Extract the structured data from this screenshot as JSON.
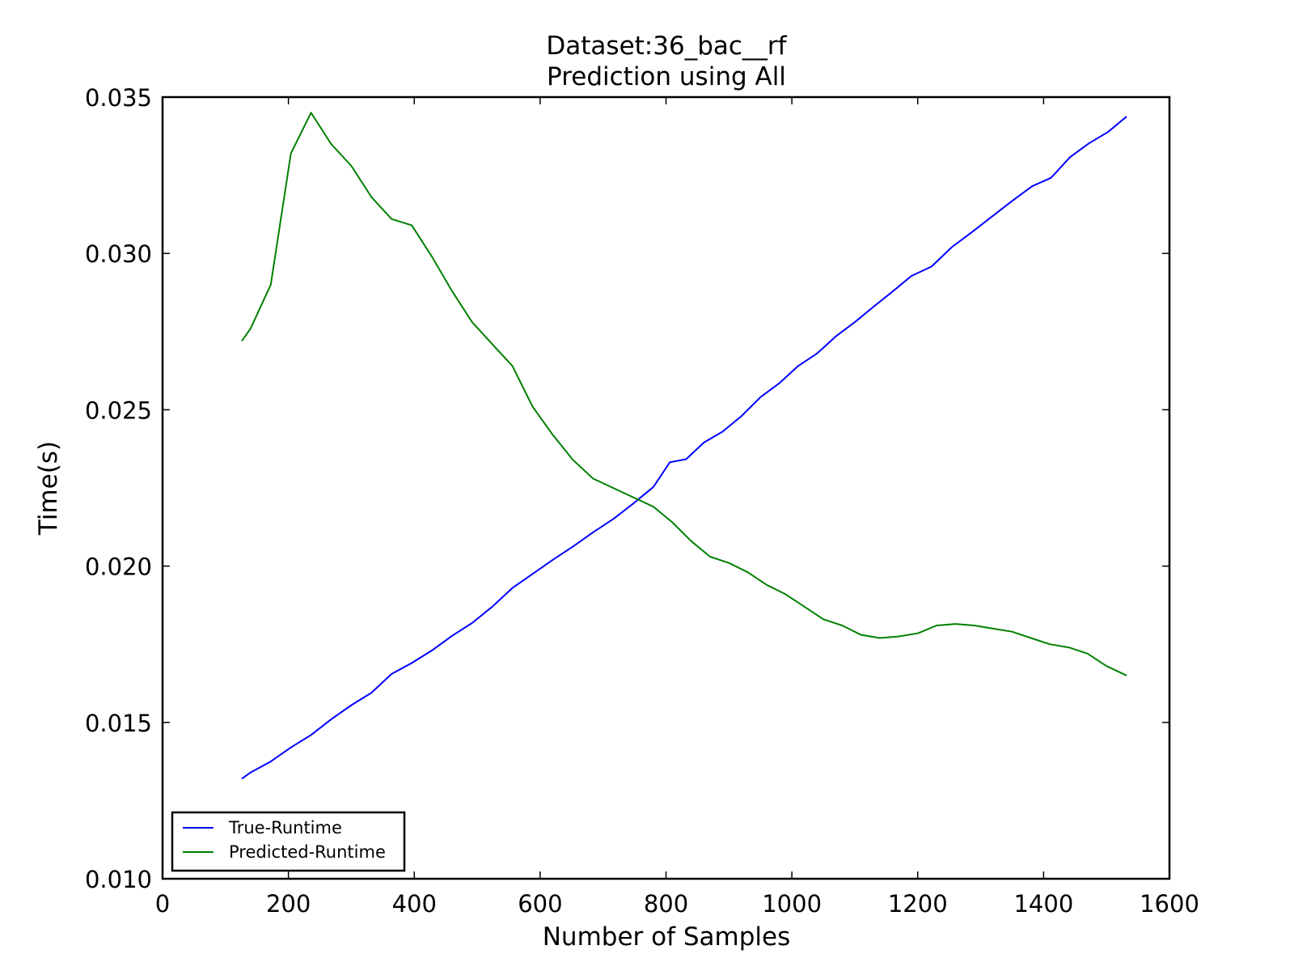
{
  "chart_data": {
    "type": "line",
    "title": "Dataset:36_bac__rf",
    "subtitle": "Prediction using All",
    "xlabel": "Number of Samples",
    "ylabel": "Time(s)",
    "xlim": [
      0,
      1600
    ],
    "ylim": [
      0.01,
      0.035
    ],
    "xticks": [
      "0",
      "200",
      "400",
      "600",
      "800",
      "1000",
      "1200",
      "1400",
      "1600"
    ],
    "yticks": [
      "0.010",
      "0.015",
      "0.020",
      "0.025",
      "0.030",
      "0.035"
    ],
    "grid": false,
    "legend_position": "lower-left",
    "series": [
      {
        "name": "True-Runtime",
        "color": "#0000ff",
        "x": [
          126,
          140,
          172,
          204,
          236,
          268,
          300,
          332,
          364,
          396,
          428,
          460,
          492,
          524,
          556,
          588,
          620,
          652,
          684,
          716,
          748,
          780,
          806,
          832,
          860,
          890,
          920,
          950,
          980,
          1010,
          1040,
          1070,
          1100,
          1130,
          1160,
          1190,
          1222,
          1254,
          1286,
          1318,
          1350,
          1382,
          1412,
          1442,
          1472,
          1502,
          1532
        ],
        "y": [
          0.0132,
          0.0134,
          0.01375,
          0.0142,
          0.0146,
          0.0151,
          0.01555,
          0.01595,
          0.01655,
          0.0169,
          0.0173,
          0.01777,
          0.01818,
          0.0187,
          0.0193,
          0.01975,
          0.0202,
          0.02062,
          0.02108,
          0.0215,
          0.022,
          0.02253,
          0.02332,
          0.02342,
          0.02395,
          0.0243,
          0.0248,
          0.0254,
          0.02585,
          0.0264,
          0.0268,
          0.02735,
          0.0278,
          0.0283,
          0.02878,
          0.02928,
          0.02958,
          0.0302,
          0.03068,
          0.03118,
          0.03168,
          0.03215,
          0.03242,
          0.03308,
          0.03352,
          0.03388,
          0.03438
        ]
      },
      {
        "name": "Predicted-Runtime",
        "color": "#008000",
        "x": [
          126,
          140,
          172,
          204,
          236,
          268,
          300,
          332,
          364,
          396,
          428,
          460,
          492,
          524,
          556,
          588,
          620,
          652,
          684,
          716,
          748,
          780,
          810,
          840,
          870,
          900,
          930,
          960,
          990,
          1020,
          1050,
          1080,
          1110,
          1140,
          1170,
          1200,
          1230,
          1260,
          1290,
          1320,
          1350,
          1380,
          1410,
          1440,
          1470,
          1500,
          1532
        ],
        "y": [
          0.0272,
          0.0276,
          0.029,
          0.0332,
          0.0345,
          0.0335,
          0.0328,
          0.0318,
          0.0311,
          0.0309,
          0.0299,
          0.0288,
          0.0278,
          0.0271,
          0.0264,
          0.0251,
          0.0242,
          0.0234,
          0.0228,
          0.0225,
          0.0222,
          0.0219,
          0.0214,
          0.0208,
          0.0203,
          0.0201,
          0.0198,
          0.0194,
          0.0191,
          0.0187,
          0.0183,
          0.0181,
          0.0178,
          0.0177,
          0.01775,
          0.01785,
          0.0181,
          0.01815,
          0.0181,
          0.018,
          0.0179,
          0.0177,
          0.0175,
          0.0174,
          0.0172,
          0.0168,
          0.0165
        ]
      }
    ]
  }
}
